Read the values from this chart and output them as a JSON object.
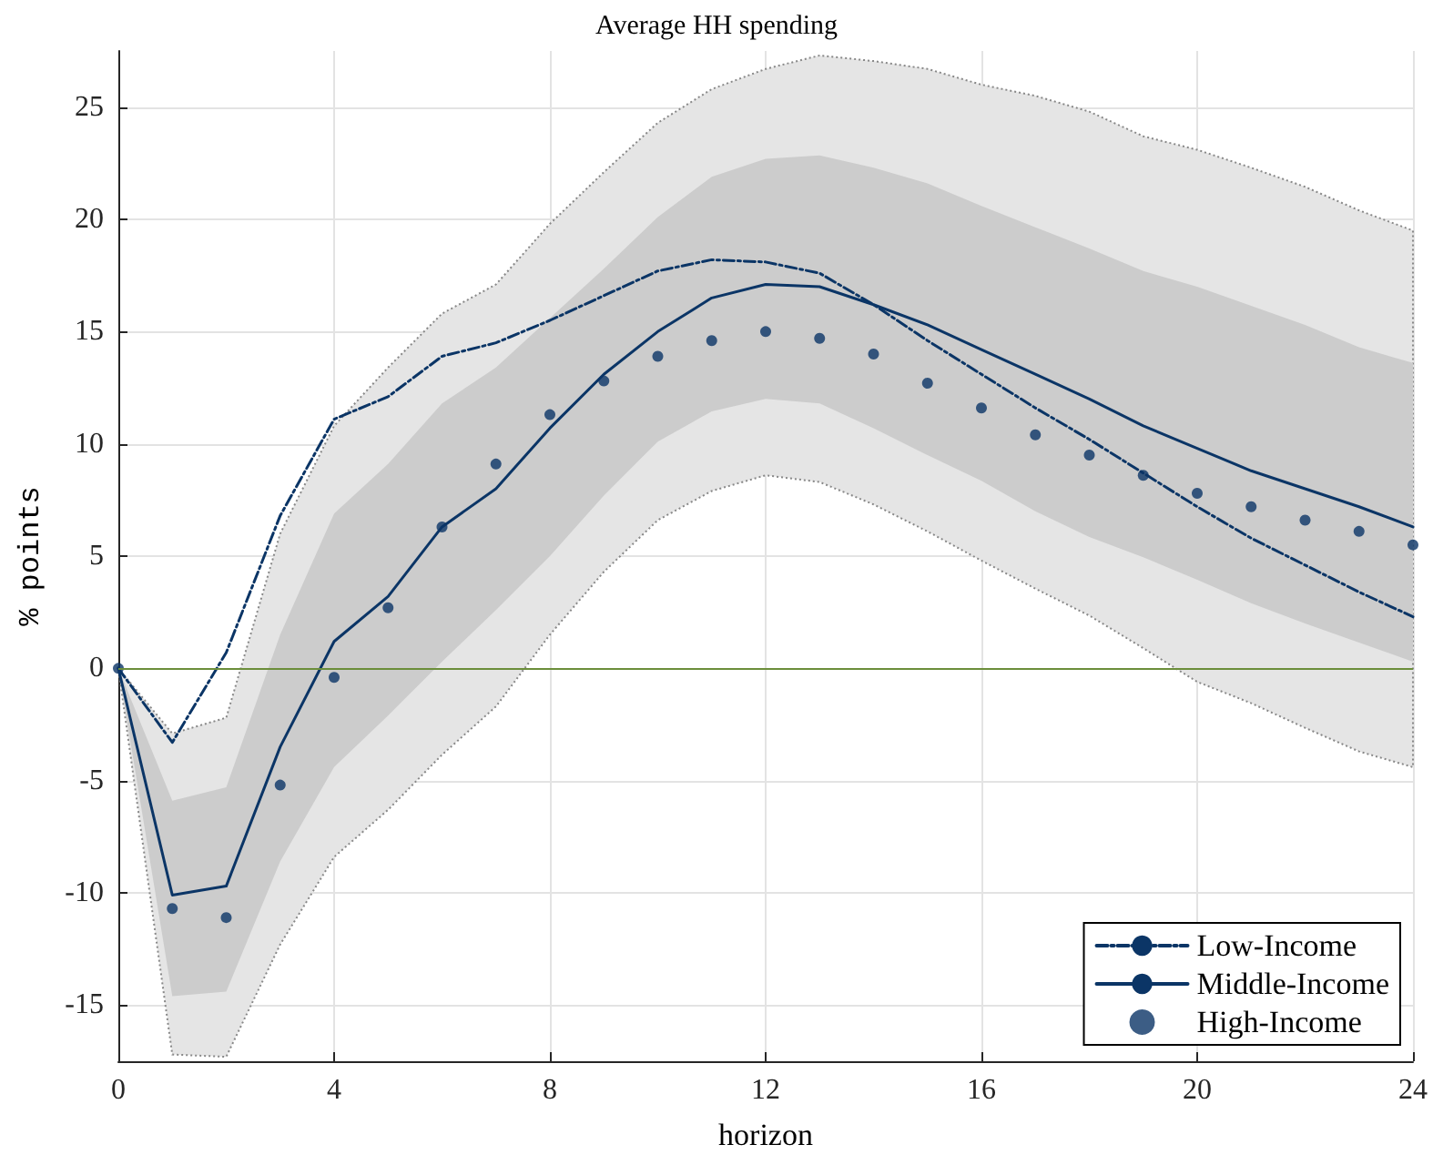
{
  "chart_data": {
    "type": "line",
    "title": "Average HH spending",
    "xlabel": "horizon",
    "ylabel": "% points",
    "x": [
      0,
      1,
      2,
      3,
      4,
      5,
      6,
      7,
      8,
      9,
      10,
      11,
      12,
      13,
      14,
      15,
      16,
      17,
      18,
      19,
      20,
      21,
      22,
      23,
      24
    ],
    "series": [
      {
        "color": "#e5e5e5",
        "values": [
          null,
          null,
          null,
          null,
          null,
          null,
          null,
          null,
          null,
          null,
          null,
          null,
          null,
          null,
          null,
          null,
          null,
          null,
          null,
          null,
          null,
          null,
          null,
          null,
          null
        ],
        "line_style": "dotted",
        "lower": [
          0,
          -17.2,
          -17.3,
          -12.3,
          -8.4,
          -6.3,
          -3.85,
          -1.7,
          1.5,
          4.3,
          6.6,
          7.9,
          8.6,
          8.3,
          7.3,
          6.1,
          4.8,
          3.55,
          2.35,
          0.9,
          -0.6,
          -1.55,
          -2.65,
          -3.7,
          -4.4
        ],
        "upper": [
          0,
          -2.9,
          -2.2,
          6.0,
          10.8,
          13.4,
          15.8,
          17.1,
          19.8,
          22.1,
          24.3,
          25.8,
          26.7,
          27.3,
          27.05,
          26.7,
          26.0,
          25.5,
          24.8,
          23.7,
          23.1,
          22.3,
          21.45,
          20.4,
          19.5
        ]
      },
      {
        "color": "#cccccc",
        "values": [
          null,
          null,
          null,
          null,
          null,
          null,
          null,
          null,
          null,
          null,
          null,
          null,
          null,
          null,
          null,
          null,
          null,
          null,
          null,
          null,
          null,
          null,
          null,
          null,
          null
        ],
        "lower": [
          0,
          -14.6,
          -14.4,
          -8.6,
          -4.4,
          -2.1,
          0.3,
          2.6,
          5.0,
          7.7,
          10.1,
          11.45,
          12.0,
          11.8,
          10.7,
          9.5,
          8.35,
          7.0,
          5.85,
          4.95,
          3.95,
          2.9,
          2.0,
          1.15,
          0.3
        ],
        "upper": [
          0,
          -5.9,
          -5.3,
          1.5,
          6.9,
          9.1,
          11.8,
          13.4,
          15.6,
          17.8,
          20.1,
          21.9,
          22.7,
          22.85,
          22.3,
          21.6,
          20.6,
          19.65,
          18.7,
          17.7,
          17.0,
          16.15,
          15.3,
          14.3,
          13.6
        ]
      },
      {
        "name": "Low-Income",
        "color": "#0b3566",
        "line_style": "dashed",
        "marker": "none",
        "values": [
          0,
          -3.3,
          0.7,
          6.8,
          11.1,
          12.1,
          13.9,
          14.5,
          15.5,
          16.6,
          17.7,
          18.2,
          18.1,
          17.6,
          16.2,
          14.6,
          13.1,
          11.6,
          10.2,
          8.7,
          7.2,
          5.8,
          4.6,
          3.4,
          2.3
        ]
      },
      {
        "name": "Middle-Income",
        "color": "#0b3566",
        "line_style": "solid",
        "marker": "none",
        "values": [
          0,
          -10.1,
          -9.7,
          -3.5,
          1.2,
          3.2,
          6.3,
          8.0,
          10.7,
          13.1,
          15.0,
          16.5,
          17.1,
          17.0,
          16.2,
          15.3,
          14.2,
          13.1,
          12.0,
          10.8,
          9.8,
          8.8,
          8.0,
          7.2,
          6.3
        ]
      },
      {
        "name": "High-Income",
        "type": "scatter",
        "color": "#0b3566",
        "marker": "circle",
        "values": [
          0,
          -10.7,
          -11.1,
          -5.2,
          -0.4,
          2.7,
          6.3,
          9.1,
          11.3,
          12.8,
          13.9,
          14.6,
          15.0,
          14.7,
          14.0,
          12.7,
          11.6,
          10.4,
          9.5,
          8.6,
          7.8,
          7.2,
          6.6,
          6.1,
          5.5
        ]
      }
    ],
    "xlim": [
      0,
      24
    ],
    "xticks": [
      0,
      4,
      8,
      12,
      16,
      20,
      24
    ],
    "ylim": [
      -17.5,
      27.5
    ],
    "yticks": [
      -15,
      -10,
      -5,
      0,
      5,
      10,
      15,
      20,
      25
    ],
    "ref_lines": [
      {
        "axis": "y",
        "value": 0,
        "color": "#6b8e3a"
      }
    ],
    "grid": true,
    "legend": "bottom right"
  }
}
